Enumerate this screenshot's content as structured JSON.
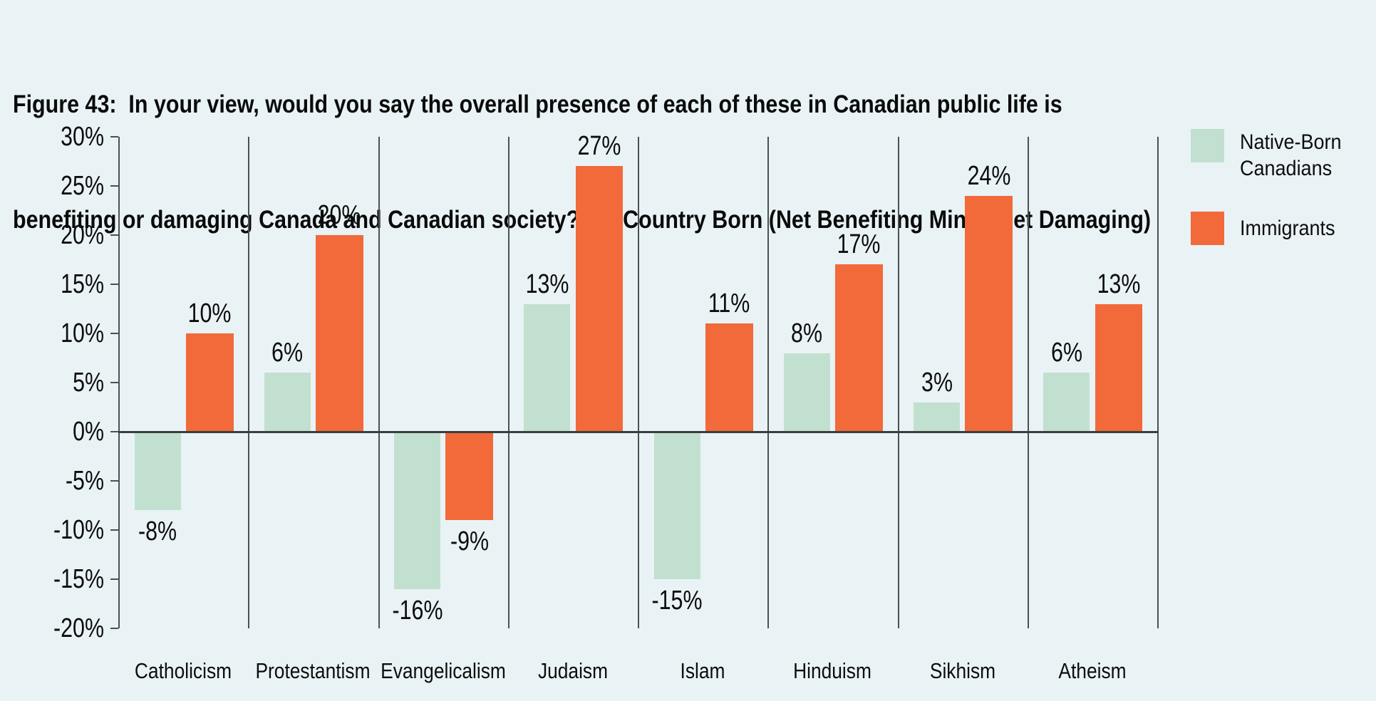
{
  "title": {
    "line1": "Figure 43:  In your view, would you say the overall presence of each of these in Canadian public life is",
    "line2": "benefiting or damaging Canada and Canadian society?, by Country Born (Net Benefiting Minus Net Damaging)"
  },
  "colors": {
    "background": "#e9f3f5",
    "native_born": "#c2e0cf",
    "immigrants": "#f2693a",
    "axis_line": "#4b5054",
    "zero_line": "#3a3e41",
    "text": "#0d0d0d"
  },
  "chart_data": {
    "type": "bar",
    "title": "Figure 43: In your view, would you say the overall presence of each of these in Canadian public life is benefiting or damaging Canada and Canadian society?, by Country Born (Net Benefiting Minus Net Damaging)",
    "categories": [
      "Catholicism",
      "Protestantism",
      "Evangelicalism",
      "Judaism",
      "Islam",
      "Hinduism",
      "Sikhism",
      "Atheism"
    ],
    "series": [
      {
        "name": "Native-Born Canadians",
        "color": "#c2e0cf",
        "values": [
          -8,
          6,
          -16,
          13,
          -15,
          8,
          3,
          6
        ]
      },
      {
        "name": "Immigrants",
        "color": "#f2693a",
        "values": [
          10,
          20,
          -9,
          27,
          11,
          17,
          24,
          13
        ]
      }
    ],
    "value_label_format": "{v}%",
    "ylim": [
      -20,
      30
    ],
    "ytick_step": 5,
    "ytick_suffix": "%",
    "xlabel": "",
    "ylabel": "",
    "grid": "vertical-category-separators-only",
    "legend_position": "top-right"
  }
}
